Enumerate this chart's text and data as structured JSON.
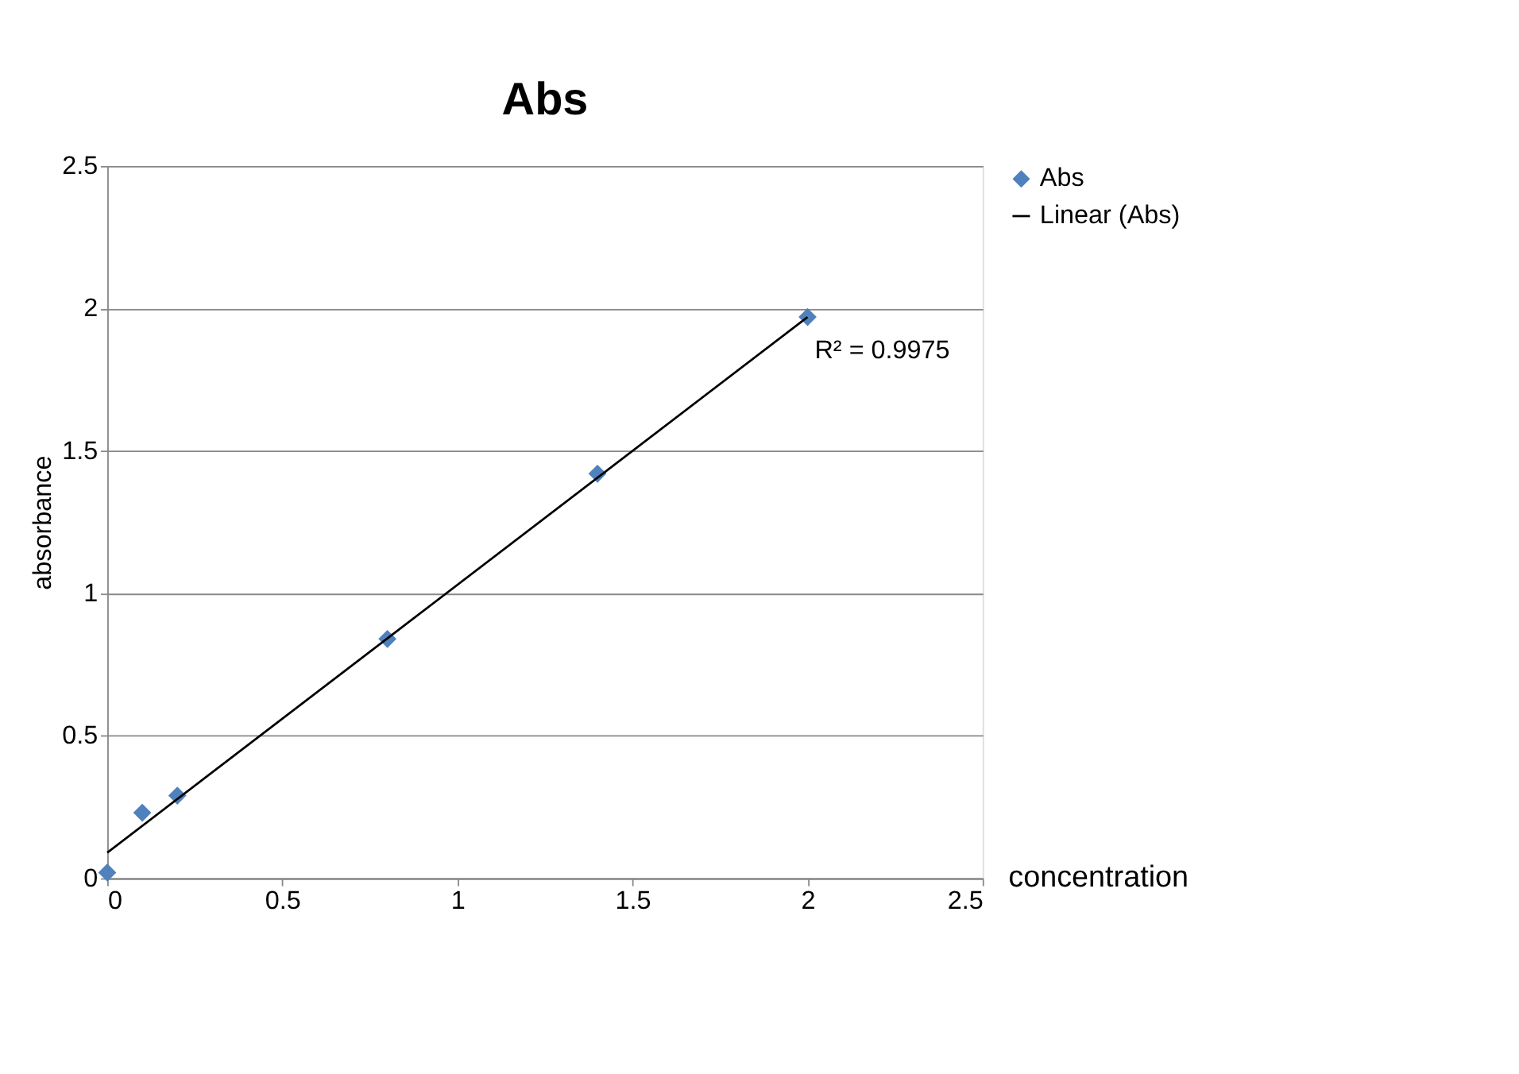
{
  "chart_data": {
    "type": "scatter",
    "title": "Abs",
    "xlabel": "concentration",
    "ylabel": "absorbance",
    "xlim": [
      0,
      2.5
    ],
    "xticks": [
      0,
      0.5,
      1,
      1.5,
      2,
      2.5
    ],
    "ylim": [
      0,
      2.5
    ],
    "yticks": [
      0,
      0.5,
      1,
      1.5,
      2,
      2.5
    ],
    "grid": "y",
    "legend": "right",
    "annotations": [
      {
        "text": "R² = 0.9975",
        "x": 2,
        "y": 1.97
      }
    ],
    "series": [
      {
        "name": "Abs",
        "marker": "diamond",
        "color": "#4f81bd",
        "x": [
          0,
          0.1,
          0.2,
          0.8,
          1.4,
          2
        ],
        "values": [
          0.02,
          0.23,
          0.29,
          0.84,
          1.42,
          1.97
        ]
      },
      {
        "name": "Linear (Abs)",
        "type": "line",
        "line_style": "solid",
        "color": "#000000",
        "x": [
          0,
          2
        ],
        "values": [
          0.09,
          1.97
        ]
      }
    ]
  }
}
